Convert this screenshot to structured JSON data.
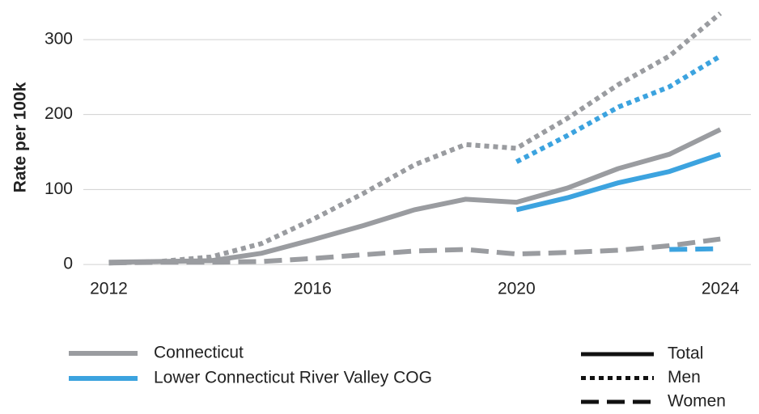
{
  "chart_data": {
    "type": "line",
    "y_label": "Rate per 100k",
    "x": [
      2012,
      2013,
      2014,
      2015,
      2016,
      2017,
      2018,
      2019,
      2020,
      2021,
      2022,
      2023,
      2024
    ],
    "xlim": [
      2011.5,
      2024.6
    ],
    "xticks": [
      2012,
      2016,
      2020,
      2024
    ],
    "ylim": [
      -15,
      342
    ],
    "yticks": [
      0,
      100,
      200,
      300
    ],
    "grid": true,
    "regions": [
      {
        "name": "Connecticut",
        "color": "#9a9ca0"
      },
      {
        "name": "Lower Connecticut River Valley COG",
        "color": "#3ca3df"
      }
    ],
    "measures": [
      {
        "name": "Total",
        "dash": "solid"
      },
      {
        "name": "Men",
        "dash": "dotted"
      },
      {
        "name": "Women",
        "dash": "dashed"
      }
    ],
    "series": [
      {
        "region": 0,
        "measure": 0,
        "values": [
          3,
          4,
          5,
          15,
          33,
          52,
          73,
          87,
          83,
          102,
          128,
          147,
          180
        ]
      },
      {
        "region": 0,
        "measure": 1,
        "values": [
          2,
          4,
          10,
          28,
          60,
          95,
          133,
          160,
          155,
          195,
          240,
          278,
          335
        ]
      },
      {
        "region": 0,
        "measure": 2,
        "values": [
          2,
          3,
          3,
          4,
          8,
          13,
          18,
          20,
          14,
          16,
          19,
          25,
          34
        ]
      },
      {
        "region": 1,
        "measure": 0,
        "values": [
          null,
          null,
          null,
          null,
          null,
          null,
          null,
          null,
          73,
          89,
          109,
          124,
          147
        ]
      },
      {
        "region": 1,
        "measure": 1,
        "values": [
          null,
          null,
          null,
          null,
          null,
          null,
          null,
          null,
          137,
          172,
          210,
          237,
          278
        ]
      },
      {
        "region": 1,
        "measure": 2,
        "values": [
          null,
          null,
          null,
          null,
          null,
          null,
          null,
          null,
          null,
          null,
          null,
          20,
          21
        ]
      }
    ]
  }
}
